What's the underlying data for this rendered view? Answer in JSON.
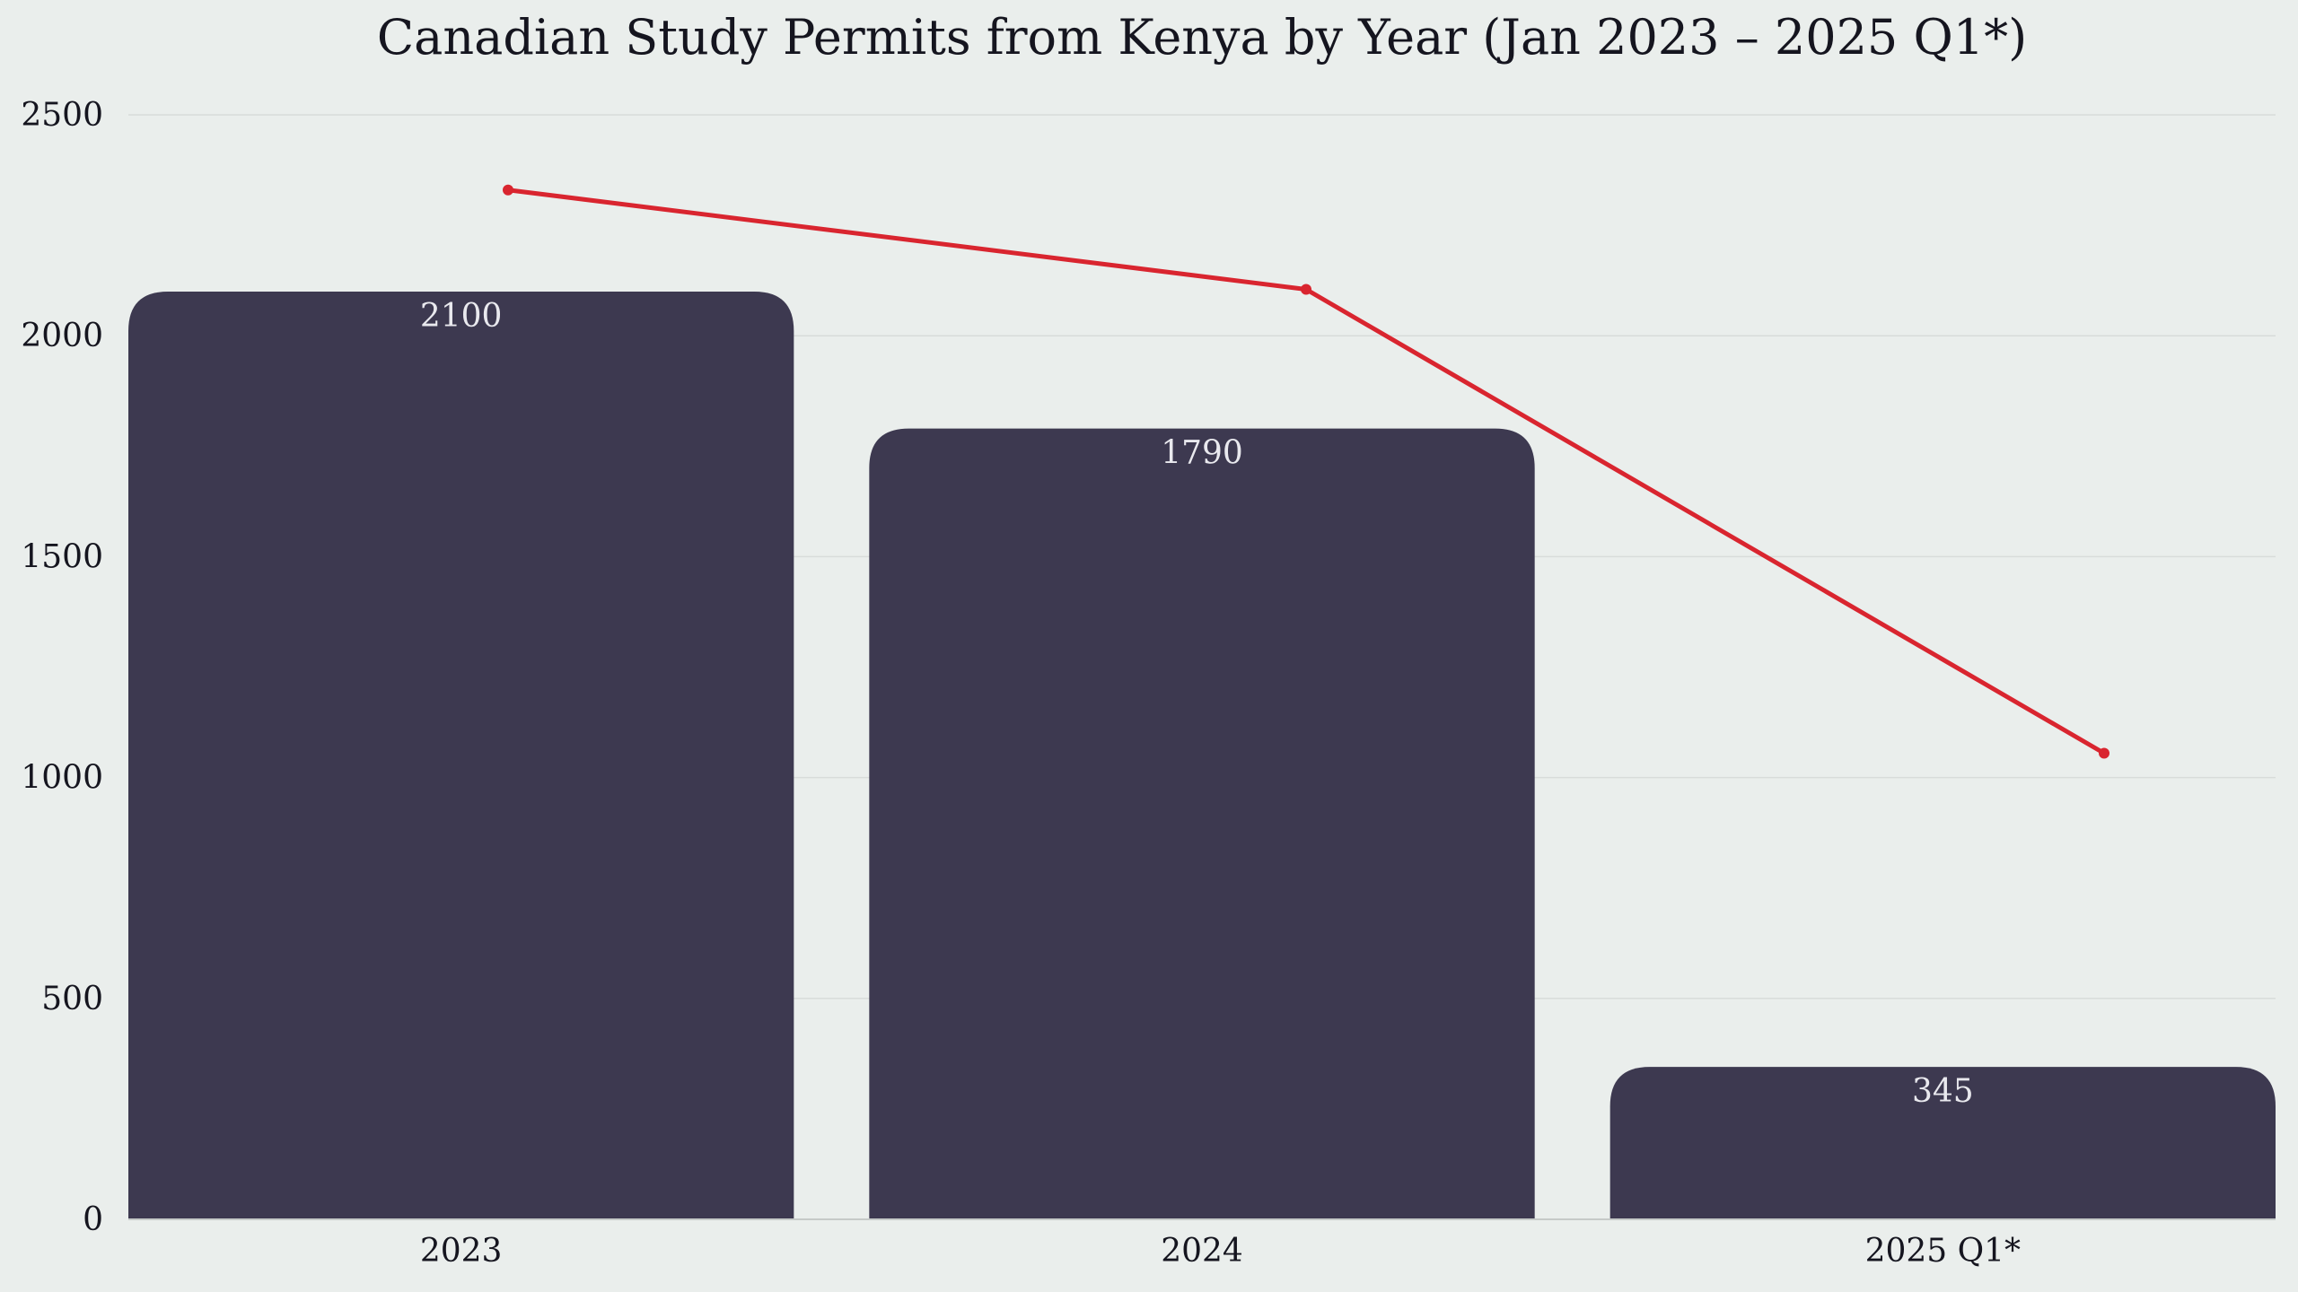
{
  "chart_data": {
    "type": "bar",
    "title": "Canadian Study Permits from Kenya by Year (Jan 2023 – 2025 Q1*)",
    "categories": [
      "2023",
      "2024",
      "2025 Q1*"
    ],
    "values": [
      2100,
      1790,
      345
    ],
    "data_labels": [
      "2100",
      "1790",
      "345"
    ],
    "line_series": {
      "values": [
        2330,
        2105,
        1055
      ]
    },
    "xlabel": "",
    "ylabel": "",
    "ylim": [
      0,
      2500
    ],
    "yticks": [
      0,
      500,
      1000,
      1500,
      2000,
      2500
    ],
    "grid": true,
    "legend": false,
    "colors": {
      "bar": "#3d3950",
      "line": "#d9252f",
      "background": "#eaeeec",
      "grid": "#d8dcda"
    }
  }
}
